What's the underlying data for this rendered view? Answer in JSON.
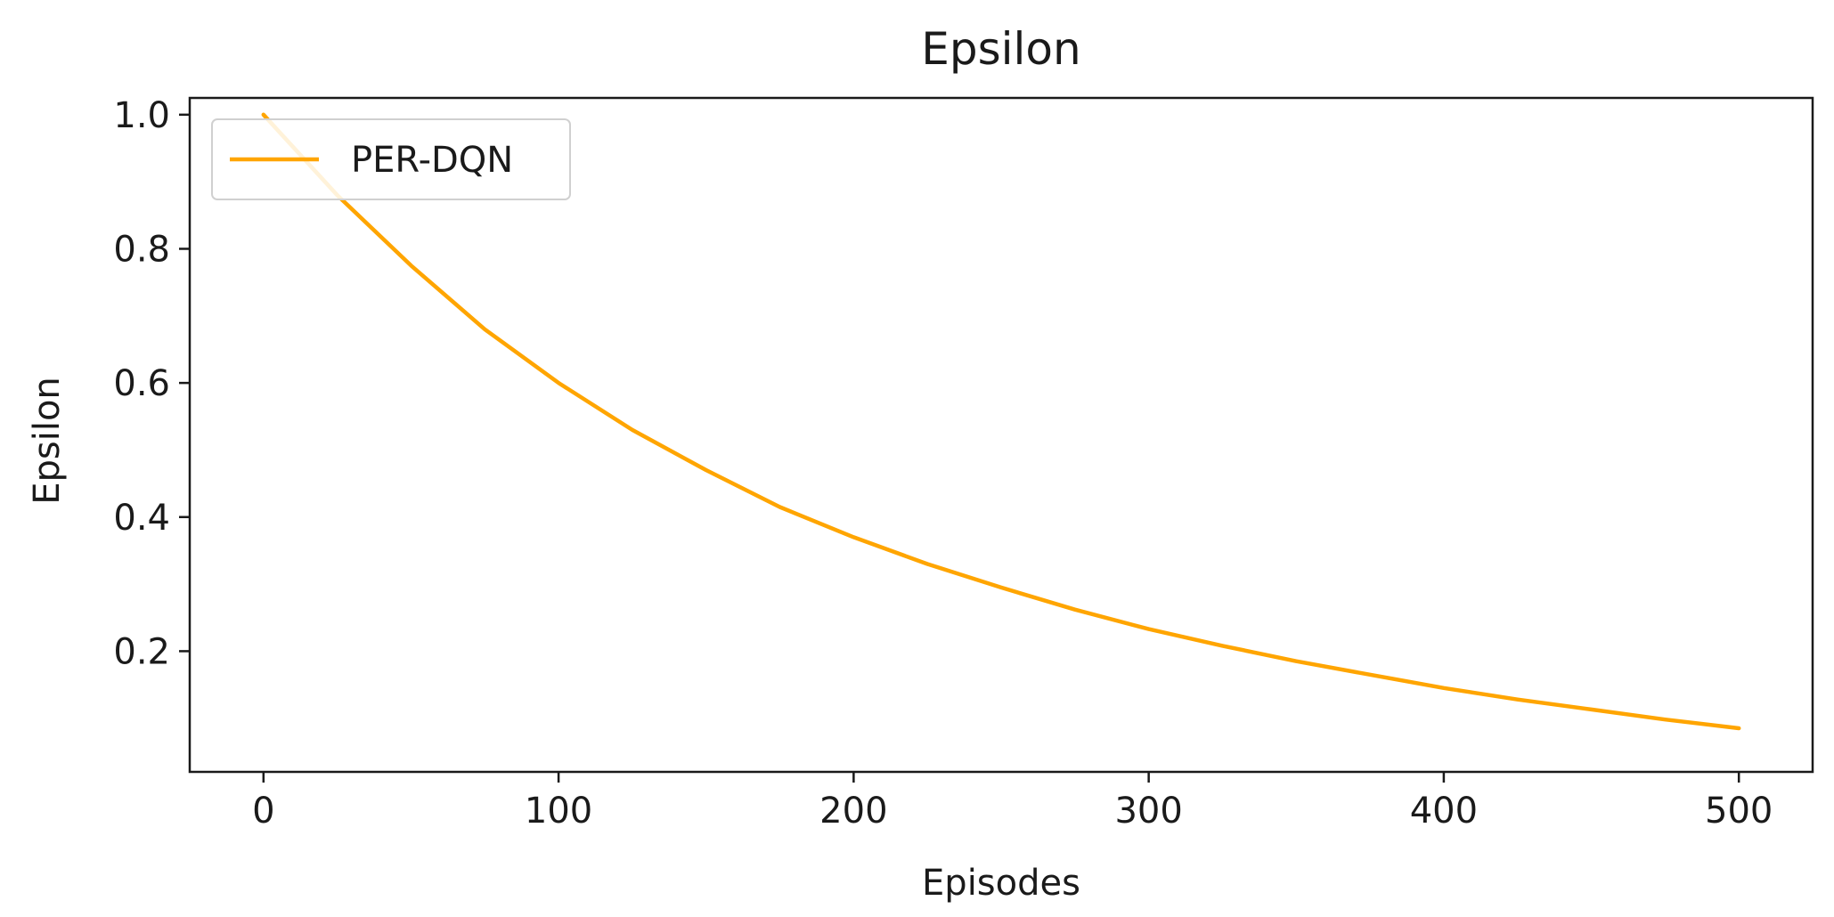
{
  "chart_data": {
    "type": "line",
    "title": "Epsilon",
    "xlabel": "Episodes",
    "ylabel": "Epsilon",
    "xlim": [
      -25,
      525
    ],
    "ylim": [
      0.02,
      1.025
    ],
    "x_ticks": [
      0,
      100,
      200,
      300,
      400,
      500
    ],
    "y_ticks": [
      0.2,
      0.4,
      0.6,
      0.8,
      1.0
    ],
    "x_tick_labels": [
      "0",
      "100",
      "200",
      "300",
      "400",
      "500"
    ],
    "y_tick_labels": [
      "0.2",
      "0.4",
      "0.6",
      "0.8",
      "1.0"
    ],
    "grid": false,
    "legend_position": "top-left",
    "series": [
      {
        "name": "PER-DQN",
        "color": "#ffa500",
        "curve": "exponential decay",
        "x": [
          0,
          25,
          50,
          75,
          100,
          125,
          150,
          175,
          200,
          225,
          250,
          275,
          300,
          325,
          350,
          375,
          400,
          425,
          450,
          475,
          500
        ],
        "y": [
          1.0,
          0.88,
          0.775,
          0.68,
          0.6,
          0.53,
          0.47,
          0.415,
          0.37,
          0.33,
          0.295,
          0.262,
          0.233,
          0.208,
          0.185,
          0.165,
          0.145,
          0.128,
          0.113,
          0.098,
          0.085
        ]
      }
    ]
  }
}
